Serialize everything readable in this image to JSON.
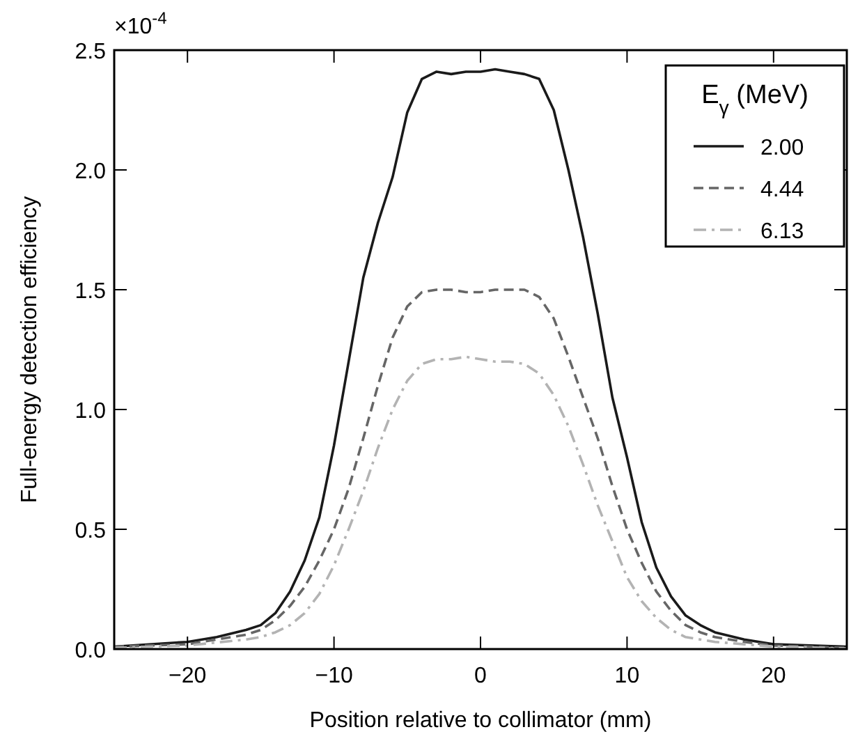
{
  "chart_data": {
    "type": "line",
    "xlabel": "Position relative to collimator (mm)",
    "ylabel": "Full-energy detection efficiency",
    "legend_title": "E$_{γ}$ (MeV)",
    "legend": "top right",
    "annotations": [
      "×10$^{-4}$"
    ],
    "xlim": [
      -25,
      25
    ],
    "xticks": [
      {
        "value": -20,
        "label": "−20"
      },
      {
        "value": -10,
        "label": "−10"
      },
      0,
      10,
      20
    ],
    "ylim": [
      0,
      2.5
    ],
    "yticks": [
      {
        "value": 0,
        "label": "0.0"
      },
      0.5,
      {
        "value": 1,
        "label": "1.0"
      },
      1.5,
      {
        "value": 2,
        "label": "2.0"
      },
      2.5
    ],
    "grid": false,
    "series": [
      {
        "name": "2.00",
        "color": "#1a1a1a",
        "line_style": "solid",
        "x": [
          -25,
          -20,
          -18,
          -16,
          -15,
          -14,
          -13,
          -12,
          -11,
          -10,
          -9,
          -8,
          -7,
          -6,
          -5,
          -4,
          -3,
          -2,
          -1,
          0,
          1,
          2,
          3,
          4,
          5,
          6,
          7,
          8,
          9,
          10,
          11,
          12,
          13,
          14,
          15,
          16,
          18,
          20,
          25
        ],
        "values": [
          0.01,
          0.03,
          0.05,
          0.08,
          0.1,
          0.15,
          0.24,
          0.37,
          0.55,
          0.85,
          1.2,
          1.55,
          1.78,
          1.97,
          2.24,
          2.38,
          2.41,
          2.4,
          2.41,
          2.41,
          2.42,
          2.41,
          2.4,
          2.38,
          2.25,
          2.0,
          1.72,
          1.4,
          1.05,
          0.8,
          0.53,
          0.34,
          0.22,
          0.14,
          0.1,
          0.07,
          0.04,
          0.02,
          0.01
        ]
      },
      {
        "name": "4.44",
        "color": "#666666",
        "line_style": "dashed",
        "x": [
          -25,
          -20,
          -16,
          -15,
          -14,
          -13,
          -12,
          -11,
          -10,
          -9,
          -8,
          -7,
          -6,
          -5,
          -4,
          -3,
          -2,
          -1,
          0,
          1,
          2,
          3,
          4,
          5,
          6,
          7,
          8,
          9,
          10,
          11,
          12,
          13,
          14,
          15,
          16,
          18,
          20,
          25
        ],
        "values": [
          0.01,
          0.02,
          0.06,
          0.08,
          0.12,
          0.18,
          0.26,
          0.37,
          0.5,
          0.67,
          0.88,
          1.1,
          1.3,
          1.43,
          1.49,
          1.5,
          1.5,
          1.49,
          1.49,
          1.5,
          1.5,
          1.5,
          1.47,
          1.38,
          1.22,
          1.05,
          0.88,
          0.68,
          0.5,
          0.36,
          0.24,
          0.16,
          0.1,
          0.07,
          0.05,
          0.03,
          0.015,
          0.005
        ]
      },
      {
        "name": "6.13",
        "color": "#b3b3b3",
        "line_style": "dashdot",
        "x": [
          -25,
          -20,
          -16,
          -15,
          -14,
          -13,
          -12,
          -11,
          -10,
          -9,
          -8,
          -7,
          -6,
          -5,
          -4,
          -3,
          -2,
          -1,
          0,
          1,
          2,
          3,
          4,
          5,
          6,
          7,
          8,
          9,
          10,
          11,
          12,
          13,
          14,
          15,
          16,
          18,
          20,
          25
        ],
        "values": [
          0.005,
          0.015,
          0.04,
          0.05,
          0.07,
          0.1,
          0.15,
          0.23,
          0.35,
          0.5,
          0.66,
          0.84,
          1.0,
          1.12,
          1.19,
          1.21,
          1.21,
          1.22,
          1.21,
          1.2,
          1.2,
          1.19,
          1.15,
          1.06,
          0.93,
          0.77,
          0.6,
          0.45,
          0.3,
          0.2,
          0.13,
          0.08,
          0.05,
          0.04,
          0.03,
          0.02,
          0.01,
          0.003
        ]
      }
    ]
  }
}
